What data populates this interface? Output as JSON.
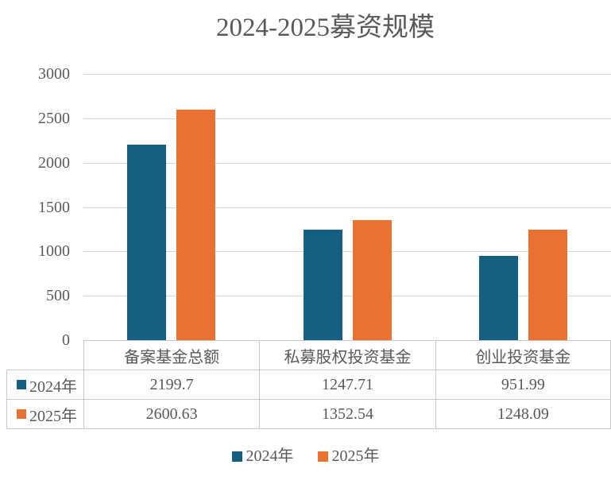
{
  "chart": {
    "title": "2024-2025募资规模",
    "colors": {
      "series_2024": "#156082",
      "series_2025": "#E97132",
      "text": "#595959",
      "gridline": "#D9D9D9",
      "table_border": "#C9C9C9"
    }
  },
  "chart_data": {
    "type": "bar",
    "title": "2024-2025募资规模",
    "categories": [
      "备案基金总额",
      "私募股权投资基金",
      "创业投资基金"
    ],
    "series": [
      {
        "name": "2024年",
        "color": "#156082",
        "values": [
          2199.7,
          1247.71,
          951.99
        ]
      },
      {
        "name": "2025年",
        "color": "#E97132",
        "values": [
          2600.63,
          1352.54,
          1248.09
        ]
      }
    ],
    "xlabel": "",
    "ylabel": "",
    "ylim": [
      0,
      3000
    ],
    "yticks": [
      0,
      500,
      1000,
      1500,
      2000,
      2500,
      3000
    ],
    "grid": true,
    "legend_position": "bottom",
    "data_table_shown": true
  }
}
